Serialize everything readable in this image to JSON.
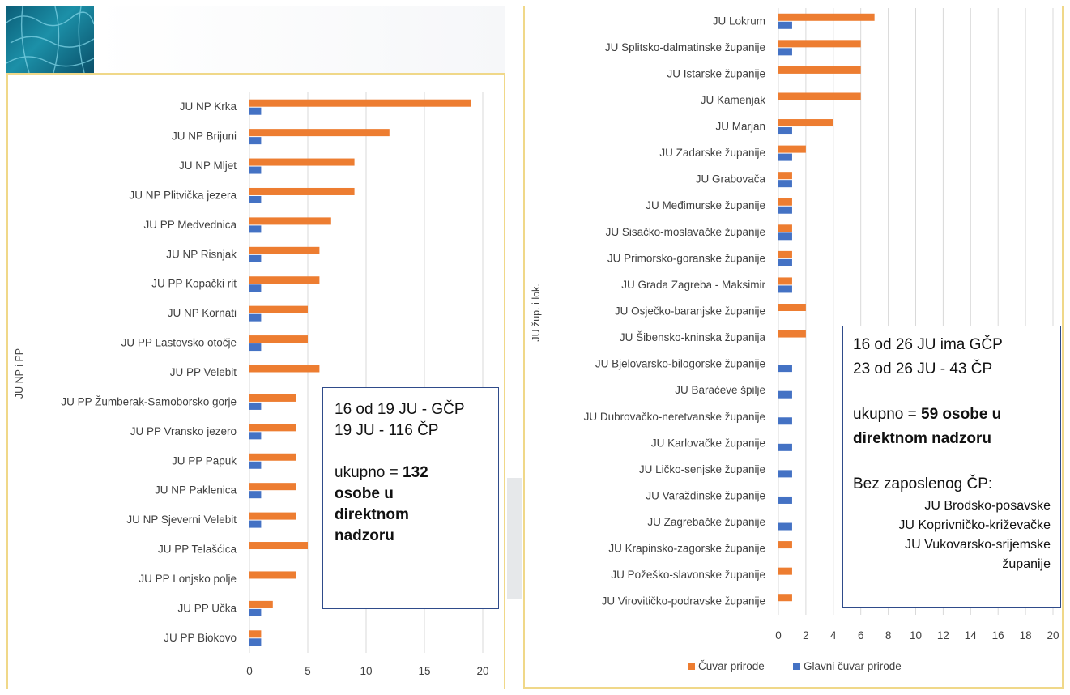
{
  "colors": {
    "cuvar": "#ed7d31",
    "glavni": "#4472c4",
    "grid": "#d9d9d9"
  },
  "charts": {
    "left": {
      "ylabel": "JU NP i PP",
      "xticks": [
        "0",
        "5",
        "10",
        "15",
        "20"
      ],
      "note": {
        "line1": "16 od 19 JU - GČP",
        "line2": "19 JU - 116 ČP",
        "line3_prefix": "ukupno = ",
        "line3_bold": "132",
        "line4": "osobe u",
        "line5": "direktnom",
        "line6": "nadzoru"
      }
    },
    "right": {
      "ylabel": "JU žup. i lok.",
      "xticks": [
        "0",
        "2",
        "4",
        "6",
        "8",
        "10",
        "12",
        "14",
        "16",
        "18",
        "20"
      ],
      "legend": {
        "cuvar": "Čuvar prirode",
        "glavni": "Glavni čuvar prirode"
      },
      "note": {
        "line1": "16 od 26 JU ima GČP",
        "line2": "23 od 26 JU - 43 ČP",
        "line3_prefix": "ukupno = ",
        "line3_bold": "59 osobe u",
        "line4": "direktnom nadzoru",
        "line5": "Bez zaposlenog ČP:",
        "line6": "JU Brodsko-posavske",
        "line7": "JU Koprivničko-križevačke",
        "line8": "JU Vukovarsko-srijemske",
        "line9": "županije"
      }
    }
  },
  "chart_data": [
    {
      "type": "bar",
      "orientation": "horizontal",
      "title": "",
      "xlabel": "",
      "ylabel": "JU NP i PP",
      "xlim": [
        0,
        20
      ],
      "grid": true,
      "categories": [
        "JU NP Krka",
        "JU NP Brijuni",
        "JU NP Mljet",
        "JU NP Plitvička jezera",
        "JU PP Medvednica",
        "JU NP Risnjak",
        "JU PP Kopački rit",
        "JU NP Kornati",
        "JU PP Lastovsko otočje",
        "JU PP Velebit",
        "JU PP Žumberak-Samoborsko gorje",
        "JU PP Vransko jezero",
        "JU PP Papuk",
        "JU NP Paklenica",
        "JU NP Sjeverni Velebit",
        "JU PP Telašćica",
        "JU PP Lonjsko polje",
        "JU PP Učka",
        "JU PP Biokovo"
      ],
      "series": [
        {
          "name": "Čuvar prirode",
          "values": [
            19,
            12,
            9,
            9,
            7,
            6,
            6,
            5,
            5,
            6,
            4,
            4,
            4,
            4,
            4,
            5,
            4,
            2,
            1
          ]
        },
        {
          "name": "Glavni čuvar prirode",
          "values": [
            1,
            1,
            1,
            1,
            1,
            1,
            1,
            1,
            1,
            0,
            1,
            1,
            1,
            1,
            1,
            0,
            0,
            1,
            1
          ]
        }
      ]
    },
    {
      "type": "bar",
      "orientation": "horizontal",
      "title": "",
      "xlabel": "",
      "ylabel": "JU žup. i lok.",
      "xlim": [
        0,
        20
      ],
      "grid": true,
      "legend": "bottom",
      "categories": [
        "JU Lokrum",
        "JU Splitsko-dalmatinske županije",
        "JU Istarske županije",
        "JU Kamenjak",
        "JU Marjan",
        "JU Zadarske županije",
        "JU Grabovača",
        "JU Međimurske županije",
        "JU Sisačko-moslavačke županije",
        "JU Primorsko-goranske županije",
        "JU Grada Zagreba - Maksimir",
        "JU Osječko-baranjske županije",
        "JU Šibensko-kninska županija",
        "JU Bjelovarsko-bilogorske županije",
        "JU Baraćeve špilje",
        "JU Dubrovačko-neretvanske županije",
        "JU Karlovačke županije",
        "JU Ličko-senjske županije",
        "JU Varaždinske županije",
        "JU Zagrebačke županije",
        "JU Krapinsko-zagorske županije",
        "JU Požeško-slavonske županije",
        "JU Virovitičko-podravske županije"
      ],
      "series": [
        {
          "name": "Čuvar prirode",
          "values": [
            7,
            6,
            6,
            6,
            4,
            2,
            1,
            1,
            1,
            1,
            1,
            2,
            2,
            0,
            0,
            0,
            0,
            0,
            0,
            0,
            1,
            1,
            1
          ]
        },
        {
          "name": "Glavni čuvar prirode",
          "values": [
            1,
            1,
            0,
            0,
            1,
            1,
            1,
            1,
            1,
            1,
            1,
            0,
            0,
            1,
            1,
            1,
            1,
            1,
            1,
            1,
            0,
            0,
            0
          ]
        }
      ]
    }
  ]
}
